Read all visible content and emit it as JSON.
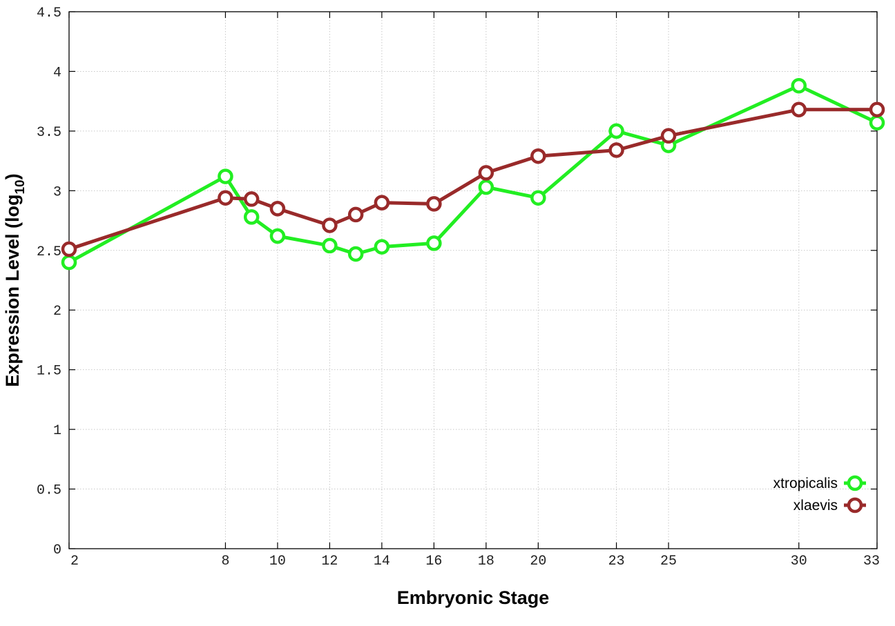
{
  "chart_data": {
    "type": "line",
    "title": "",
    "xlabel": "Embryonic Stage",
    "ylabel_main": "Expression Level (log",
    "ylabel_sub": "10",
    "ylabel_close": ")",
    "x_ticks": [
      2,
      8,
      10,
      12,
      14,
      16,
      18,
      20,
      23,
      25,
      30,
      33
    ],
    "y_ticks": [
      "0",
      "0.5",
      "1",
      "1.5",
      "2",
      "2.5",
      "3",
      "3.5",
      "4",
      "4.5"
    ],
    "ylim": [
      0,
      4.5
    ],
    "grid": true,
    "legend_position": "bottom-right",
    "categories": [
      2,
      8,
      9,
      10,
      12,
      13,
      14,
      16,
      18,
      20,
      23,
      25,
      30,
      33
    ],
    "series": [
      {
        "name": "xtropicalis",
        "color": "#22ee22",
        "values": [
          2.4,
          3.12,
          2.78,
          2.62,
          2.54,
          2.47,
          2.53,
          2.56,
          3.03,
          2.94,
          3.5,
          3.38,
          3.88,
          3.57
        ]
      },
      {
        "name": "xlaevis",
        "color": "#992a2a",
        "values": [
          2.51,
          2.94,
          2.93,
          2.85,
          2.71,
          2.8,
          2.9,
          2.89,
          3.15,
          3.29,
          3.34,
          3.46,
          3.68,
          3.68
        ]
      }
    ]
  }
}
